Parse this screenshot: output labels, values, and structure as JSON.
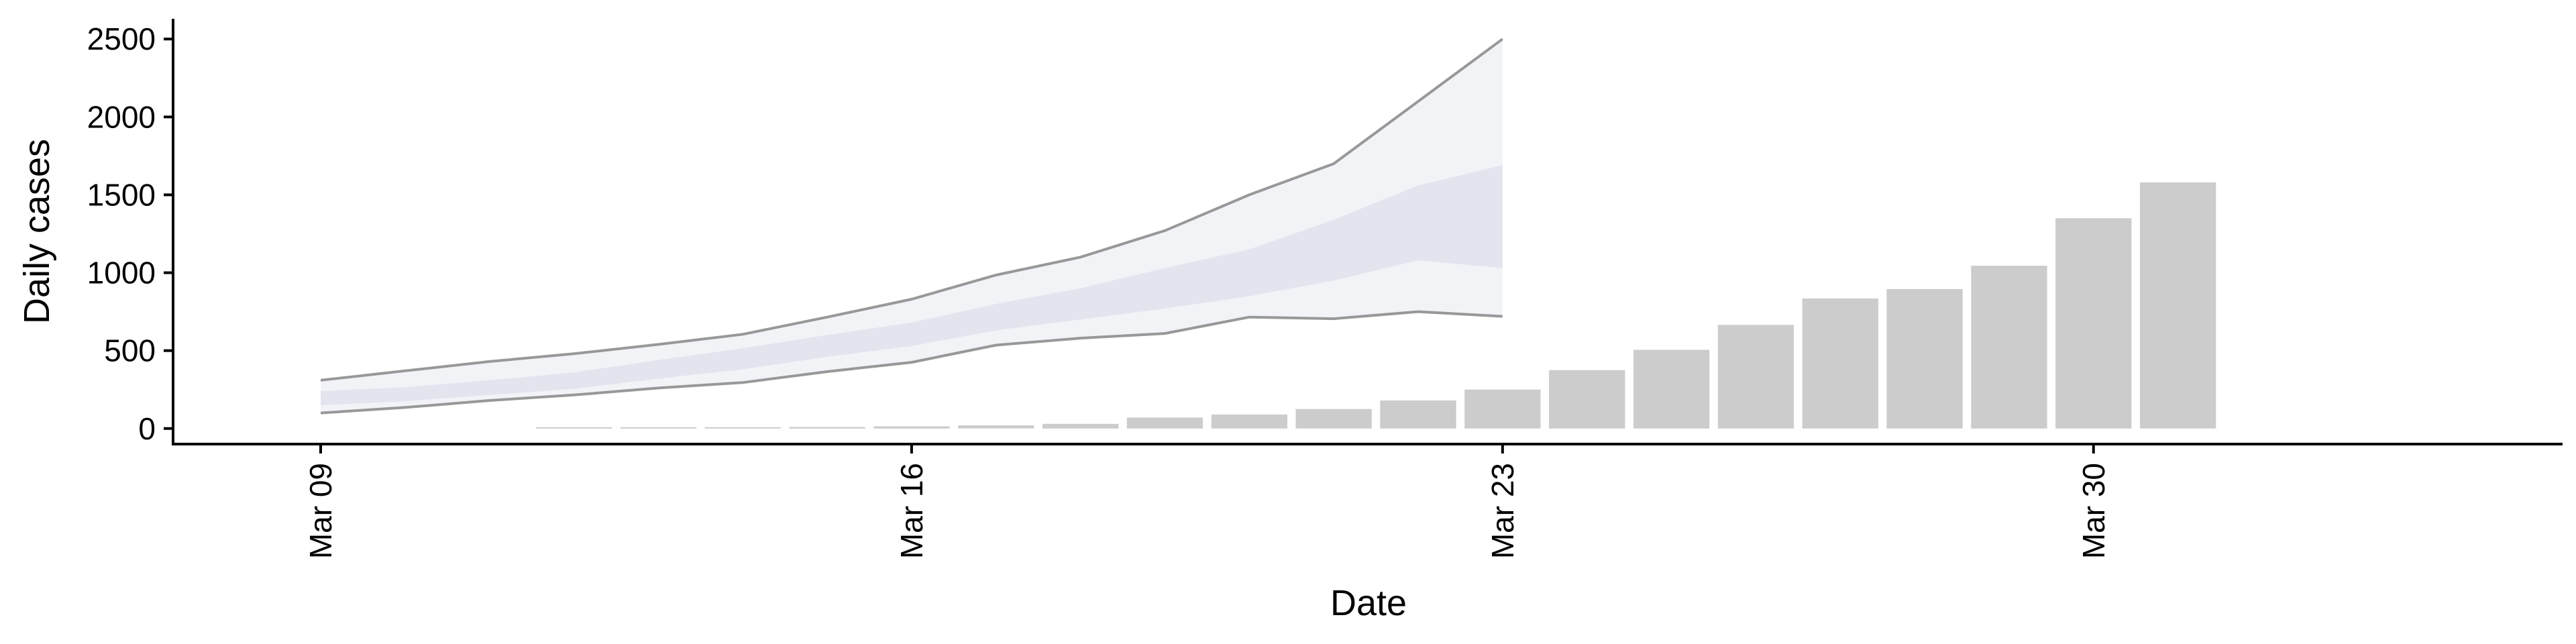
{
  "chart_data": {
    "type": "bar",
    "xlabel": "Date",
    "ylabel": "Daily cases",
    "ylim": [
      -100,
      2630
    ],
    "xlim": [
      "2020-03-09",
      "2020-04-04"
    ],
    "yticks": [
      0,
      500,
      1000,
      1500,
      2000,
      2500
    ],
    "xticks": [
      {
        "date": "2020-03-09",
        "label": "Mar 09"
      },
      {
        "date": "2020-03-16",
        "label": "Mar 16"
      },
      {
        "date": "2020-03-23",
        "label": "Mar 23"
      },
      {
        "date": "2020-03-30",
        "label": "Mar 30"
      }
    ],
    "grid": false,
    "legend": "none",
    "bars": {
      "color": "#cccccc",
      "dates": [
        "2020-03-12",
        "2020-03-13",
        "2020-03-14",
        "2020-03-15",
        "2020-03-16",
        "2020-03-17",
        "2020-03-18",
        "2020-03-19",
        "2020-03-20",
        "2020-03-21",
        "2020-03-22",
        "2020-03-23",
        "2020-03-24",
        "2020-03-25",
        "2020-03-26",
        "2020-03-27",
        "2020-03-28",
        "2020-03-29",
        "2020-03-30",
        "2020-03-31",
        "2020-04-01",
        "2020-04-02"
      ],
      "values": [
        3,
        4,
        6,
        10,
        14,
        20,
        30,
        70,
        90,
        125,
        180,
        250,
        375,
        505,
        665,
        835,
        895,
        1045,
        1350,
        1580,
        0,
        0
      ]
    },
    "forecast": {
      "band_fill": "#d8dce8",
      "line_color": "#808080",
      "dates": [
        "2020-03-09",
        "2020-03-10",
        "2020-03-11",
        "2020-03-12",
        "2020-03-13",
        "2020-03-14",
        "2020-03-15",
        "2020-03-16",
        "2020-03-17",
        "2020-03-18",
        "2020-03-19",
        "2020-03-20",
        "2020-03-21",
        "2020-03-22",
        "2020-03-23"
      ],
      "outer_upper": [
        310,
        370,
        430,
        480,
        540,
        605,
        715,
        830,
        985,
        1100,
        1270,
        1500,
        1700,
        2100,
        2500
      ],
      "outer_lower": [
        100,
        135,
        180,
        215,
        260,
        295,
        365,
        425,
        535,
        580,
        610,
        715,
        705,
        750,
        720
      ],
      "inner_upper": [
        240,
        265,
        310,
        360,
        440,
        515,
        600,
        680,
        800,
        900,
        1030,
        1150,
        1340,
        1560,
        1690
      ],
      "inner_lower": [
        150,
        175,
        215,
        255,
        320,
        380,
        460,
        530,
        630,
        700,
        770,
        850,
        950,
        1080,
        1030
      ]
    }
  }
}
